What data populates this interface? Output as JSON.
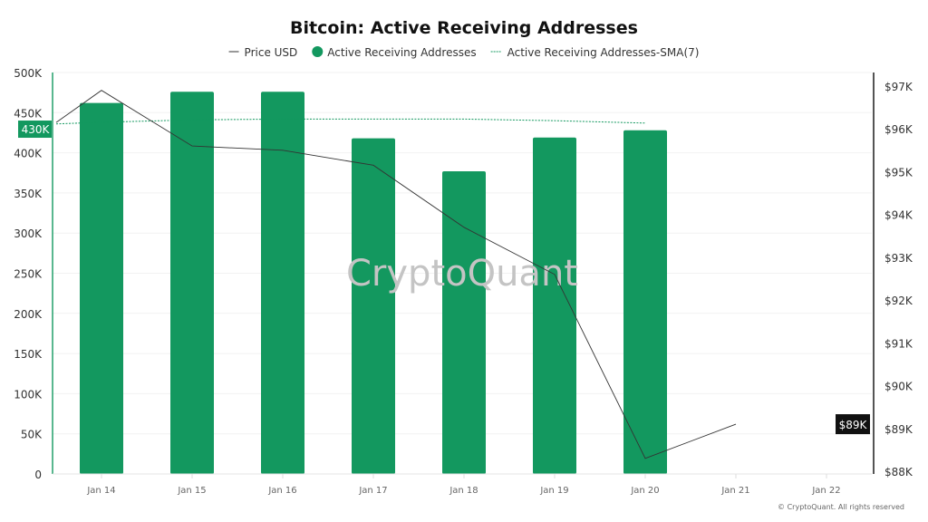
{
  "chart_data": {
    "type": "bar",
    "title": "Bitcoin: Active Receiving Addresses",
    "categories": [
      "Jan 14",
      "Jan 15",
      "Jan 16",
      "Jan 17",
      "Jan 18",
      "Jan 19",
      "Jan 20",
      "Jan 21",
      "Jan 22"
    ],
    "series": [
      {
        "name": "Active Receiving Addresses",
        "type": "bar",
        "axis": "left",
        "color": "#13985f",
        "values": [
          462000,
          476000,
          476000,
          418000,
          377000,
          419000,
          428000,
          null,
          null
        ]
      },
      {
        "name": "Active Receiving Addresses-SMA(7)",
        "type": "line",
        "style": "dotted",
        "axis": "left",
        "color": "#13985f",
        "start_value": 436000,
        "values": [
          438000,
          441000,
          442000,
          442000,
          442000,
          440000,
          437000,
          null,
          null
        ]
      },
      {
        "name": "Price USD",
        "type": "line",
        "axis": "right",
        "color": "#333333",
        "start_value": 96150,
        "values": [
          96900,
          95600,
          95500,
          95150,
          93700,
          92600,
          88300,
          89100,
          null
        ]
      }
    ],
    "left_axis": {
      "ticks": [
        "0",
        "50K",
        "100K",
        "150K",
        "200K",
        "250K",
        "300K",
        "350K",
        "400K",
        "450K",
        "500K"
      ],
      "range": [
        0,
        500000
      ],
      "highlight_label": "430K",
      "highlight_value": 430000
    },
    "right_axis": {
      "ticks": [
        "$88K",
        "$89K",
        "$90K",
        "$91K",
        "$92K",
        "$93K",
        "$94K",
        "$95K",
        "$96K",
        "$97K"
      ],
      "range": [
        88000,
        97000
      ],
      "highlight_label": "$89K",
      "highlight_value": 89100
    },
    "legend_placement": "top-center",
    "grid": true,
    "watermark": "CryptoQuant",
    "copyright": "© CryptoQuant. All rights reserved"
  }
}
